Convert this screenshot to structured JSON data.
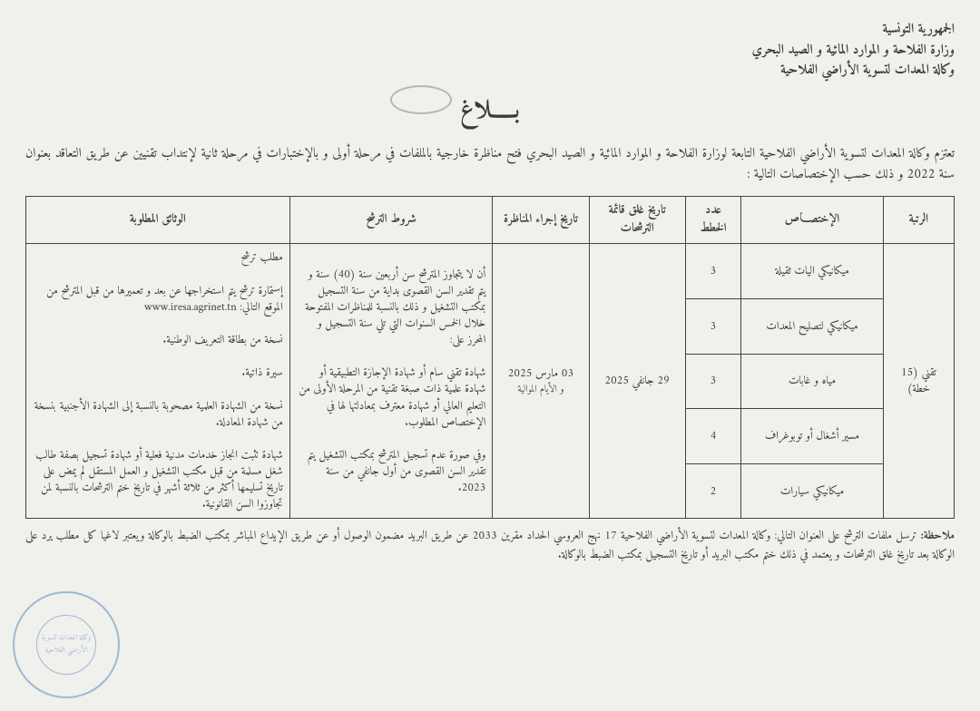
{
  "header": {
    "line1": "الجمهورية التونسية",
    "line2": "وزارة الفلاحة و الموارد المائية و الصيد البحري",
    "line3": "وكالة المعدات لتسوية الأراضي الفلاحية"
  },
  "title": "بـــــلاغ",
  "intro": "تعتزم وكالة المعدات لتسوية الأراضي الفلاحية التابعة لوزارة الفلاحة و الموارد المائية و الصيد البحري فتح مناظرة خارجية بالملفات في مرحلة أولى و بالإختبارات في مرحلة ثانية لإنتداب تقنيين عن طريق التعاقد بعنوان سنة 2022 و ذلك حسب الإختصاصات التالية :",
  "tableHeaders": {
    "grade": "الرتبة",
    "spec": "الإختصـــاص",
    "num": "عدد الخطط",
    "close": "تاريخ غلق قائمة الترشحات",
    "date": "تاريخ إجراء المناظرة",
    "cond": "شروط الترشح",
    "docs": "الوثائق المطلوبة"
  },
  "grade": "تقني (15 خطة)",
  "specs": {
    "r1": "ميكانيكي اليات ثقيلة",
    "r2": "ميكانيكي لتصليح المعدات",
    "r3": "مياه و غابات",
    "r4": "مسير أشغال أو توبوغراف",
    "r5": "ميكانيكي سيارات"
  },
  "counts": {
    "r1": "3",
    "r2": "3",
    "r3": "3",
    "r4": "4",
    "r5": "2"
  },
  "closeDate": "29 جانفي 2025",
  "examDate": "03 مارس 2025",
  "daysNote": "و الأيام الموالية",
  "conditions": "أن لا يتجاوز المترشح سن أربعين سنة (40) سنة و يتم تقدير السن القصوى بداية من سنة التسجيل بمكتب التشغيل و ذلك بالنسبة للمناظرات المفتوحة خلال الخمس السنوات التي تلي سنة التسجيل و المحرز على:\n\nشهادة تقني سام أو شهادة الإجازة التطبيقية أو شهادة علمية ذات صبغة تقنية من المرحلة الأولى من التعليم العالي أو شهادة معترف بمعادلتها لها في الإختصاص المطلوب.\n\nوفي صورة عدم تسجيل المترشح بمكتب التشغيل يتم تقدير السن القصوى من أول جانفي من سنة 2023.",
  "documents": "مطلب ترشح\n\nإستمارة ترشح يتم استخراجها عن بعد و تعميرها من قبل المترشح من الموقع التالي: www.iresa.agrinet.tn\n\nنسخة من بطاقة التعريف الوطنية.\n\nسيرة ذاتية.\n\nنسخة من الشهادة العلمية مصحوبة بالنسبة إلى الشهادة الأجنبية بنسخة من شهادة المعادلة.\n\nشهادة تثبت انجاز خدمات مدنية فعلية أو شهادة تسجيل بصفة طالب شغل مسلمة من قبل مكتب التشغيل و العمل المستقل لم يمض على تاريخ تسليمها أكثر من ثلاثة أشهر في تاريخ ختم الترشحات بالنسبة لمن تجاوزوا السن القانونية.",
  "noteLabel": "ملاحظة:",
  "noteText": "ترسل ملفات الترشح على العنوان التالي: وكالة المعدات لتسوية الأراضي الفلاحية 17 نهج العروسي الحداد مقرين 2033 عن طريق البريد مضمون الوصول أو عن طريق الإيداع المباشر بمكتب الضبط بالوكالة ويعتبر لاغيا كل مطلب يرد على الوكالة بعد تاريخ غلق الترشحات و يعتمد في ذلك ختم مكتب البريد أو تاريخ التسجيل بمكتب الضبط بالوكالة.",
  "sealText": "وكالة المعدات لتسوية الأراضي الفلاحية",
  "colors": {
    "border": "#444",
    "seal": "#5e8bc6",
    "bg": "#f0f0ec"
  }
}
